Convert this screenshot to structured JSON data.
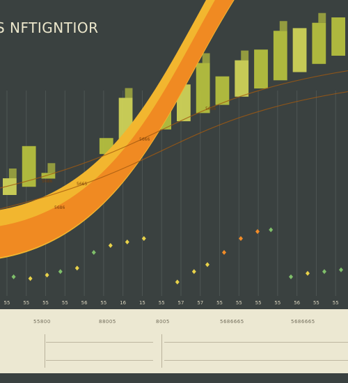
{
  "header": {
    "title": "S NFTIGNTIOR",
    "subtitle1": "",
    "subtitle2": ""
  },
  "colors": {
    "background": "#3a4140",
    "bar": "#b9c23e",
    "bar_light": "#d3d658",
    "band_outer": "#f2b62f",
    "band_inner": "#f08a22",
    "marker_green": "#7fbf6a",
    "marker_yellow": "#e8d24a",
    "marker_orange": "#f28c28",
    "footer": "#ece8d2"
  },
  "chart_data": {
    "type": "bar",
    "title": "S NFTIGNTIOR",
    "x_tick_labels": [
      "55",
      "55",
      "55",
      "55",
      "56",
      "55",
      "16",
      "15",
      "55",
      "57",
      "57",
      "55",
      "55",
      "55",
      "55",
      "56",
      "55",
      "55"
    ],
    "bar_heights": [
      0.4,
      0.52,
      0.42,
      0.3,
      0.34,
      0.55,
      0.7,
      0.58,
      0.66,
      0.75,
      0.83,
      0.78,
      0.84,
      0.88,
      0.95,
      0.96,
      0.98,
      1.0
    ],
    "bands": [
      {
        "name": "outer",
        "start": 0.2,
        "end": 0.88
      },
      {
        "name": "inner",
        "start": 0.14,
        "end": 0.82
      }
    ],
    "band_labels": [
      "5686",
      "5665",
      "5666",
      "5656"
    ],
    "markers": [
      {
        "x": 0.02,
        "y": 0.13,
        "color": "green"
      },
      {
        "x": 0.07,
        "y": 0.12,
        "color": "yellow"
      },
      {
        "x": 0.12,
        "y": 0.14,
        "color": "yellow"
      },
      {
        "x": 0.16,
        "y": 0.16,
        "color": "green"
      },
      {
        "x": 0.21,
        "y": 0.18,
        "color": "yellow"
      },
      {
        "x": 0.26,
        "y": 0.27,
        "color": "green"
      },
      {
        "x": 0.31,
        "y": 0.31,
        "color": "yellow"
      },
      {
        "x": 0.36,
        "y": 0.33,
        "color": "yellow"
      },
      {
        "x": 0.41,
        "y": 0.35,
        "color": "yellow"
      },
      {
        "x": 0.51,
        "y": 0.1,
        "color": "yellow"
      },
      {
        "x": 0.56,
        "y": 0.16,
        "color": "yellow"
      },
      {
        "x": 0.6,
        "y": 0.2,
        "color": "yellow"
      },
      {
        "x": 0.65,
        "y": 0.27,
        "color": "orange"
      },
      {
        "x": 0.7,
        "y": 0.35,
        "color": "orange"
      },
      {
        "x": 0.75,
        "y": 0.39,
        "color": "orange"
      },
      {
        "x": 0.79,
        "y": 0.4,
        "color": "green"
      },
      {
        "x": 0.85,
        "y": 0.13,
        "color": "green"
      },
      {
        "x": 0.9,
        "y": 0.15,
        "color": "yellow"
      },
      {
        "x": 0.95,
        "y": 0.16,
        "color": "green"
      },
      {
        "x": 1.0,
        "y": 0.17,
        "color": "green"
      }
    ],
    "grid": true
  },
  "footer": {
    "labels": [
      "55800",
      "88005",
      "8005",
      "5686665",
      "5686665"
    ],
    "row_labels": [
      "",
      ""
    ]
  }
}
